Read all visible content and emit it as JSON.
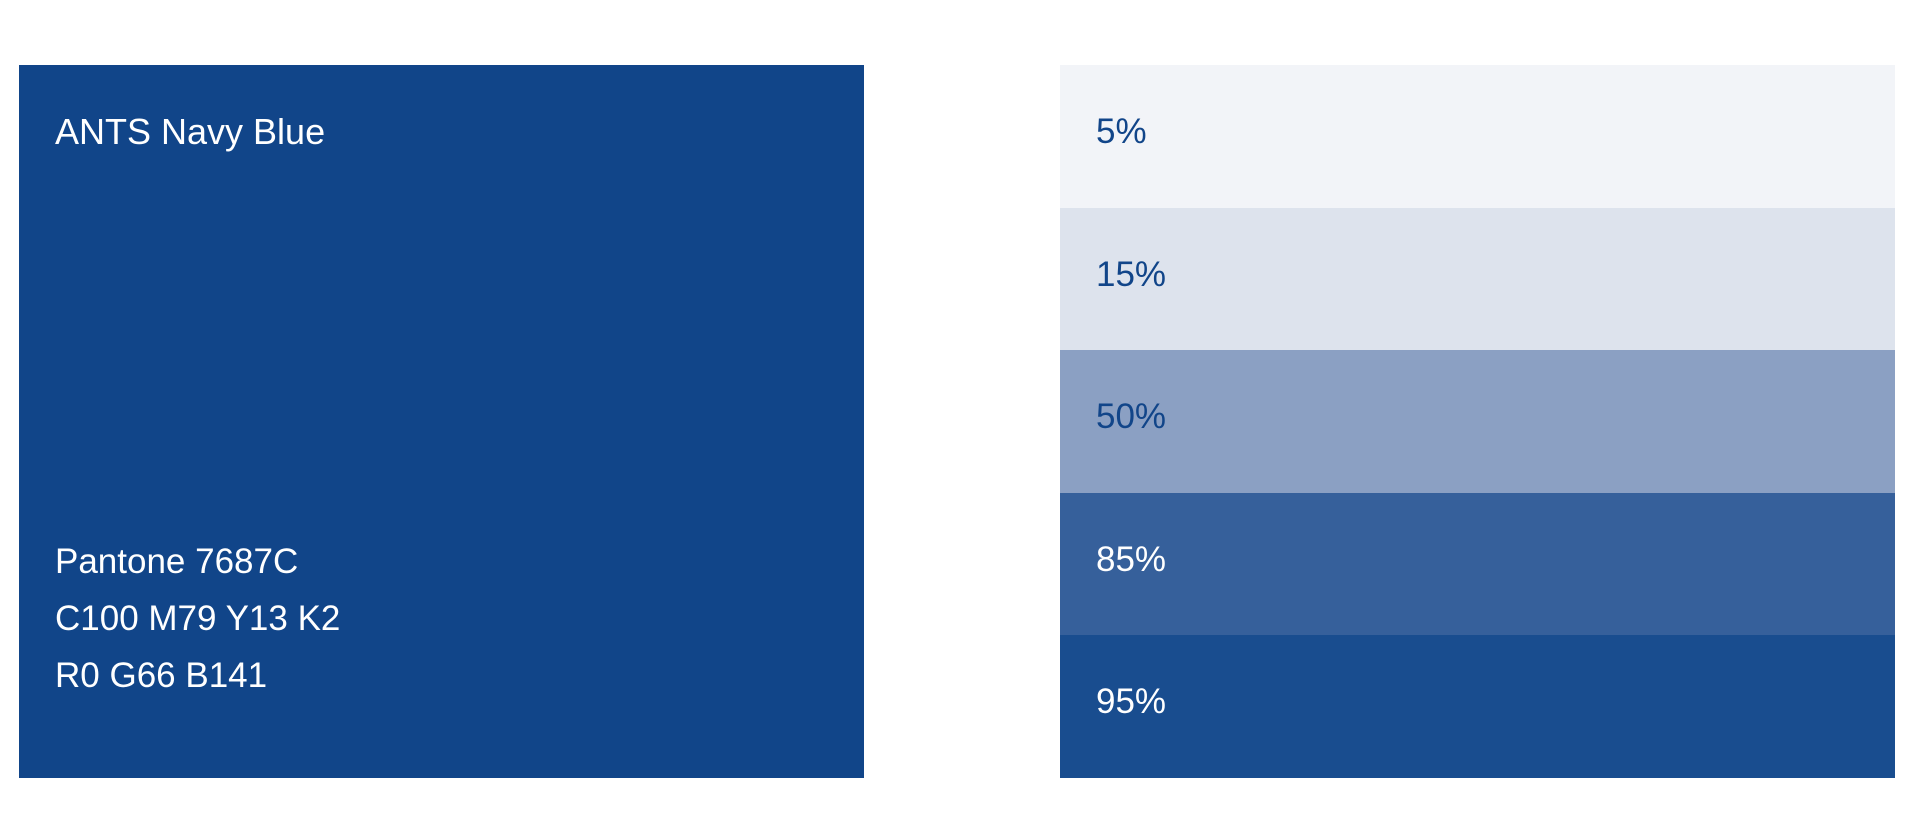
{
  "swatch": {
    "name": "ANTS Navy Blue",
    "color": "#114589",
    "text_color": "#ffffff",
    "specs": [
      "Pantone 7687C",
      "C100 M79 Y13 K2",
      "R0 G66 B141"
    ]
  },
  "tints": [
    {
      "label": "5%",
      "color": "#f2f4f8",
      "text_color": "#114589"
    },
    {
      "label": "15%",
      "color": "#dde3ed",
      "text_color": "#114589"
    },
    {
      "label": "50%",
      "color": "#8ba0c3",
      "text_color": "#114589"
    },
    {
      "label": "85%",
      "color": "#36609b",
      "text_color": "#ffffff"
    },
    {
      "label": "95%",
      "color": "#194d8f",
      "text_color": "#ffffff"
    }
  ]
}
